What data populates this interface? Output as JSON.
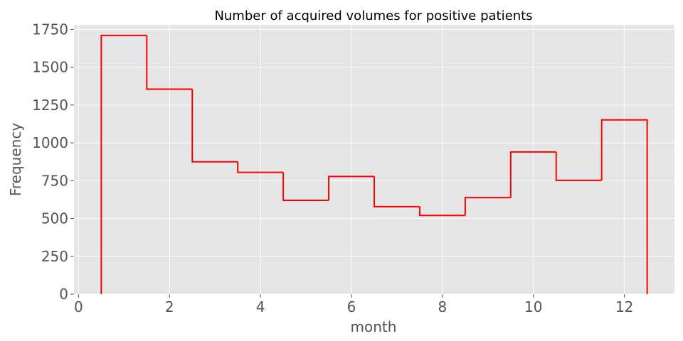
{
  "chart_data": {
    "type": "histogram-step",
    "title": "Number of acquired volumes for positive patients",
    "xlabel": "month",
    "ylabel": "Frequency",
    "xlim": [
      -0.1,
      13.1
    ],
    "ylim": [
      0,
      1780
    ],
    "xticks": [
      0,
      2,
      4,
      6,
      8,
      10,
      12
    ],
    "yticks": [
      0,
      250,
      500,
      750,
      1000,
      1250,
      1500,
      1750
    ],
    "bin_edges": [
      0.5,
      1.5,
      2.5,
      3.5,
      4.5,
      5.5,
      6.5,
      7.5,
      8.5,
      9.5,
      10.5,
      11.5,
      12.5
    ],
    "values": [
      1710,
      1355,
      875,
      805,
      620,
      778,
      578,
      520,
      638,
      940,
      752,
      1152
    ],
    "line_color": "#ff0000",
    "background": "#e5e5e5",
    "grid": true,
    "grid_color": "#ffffff"
  }
}
